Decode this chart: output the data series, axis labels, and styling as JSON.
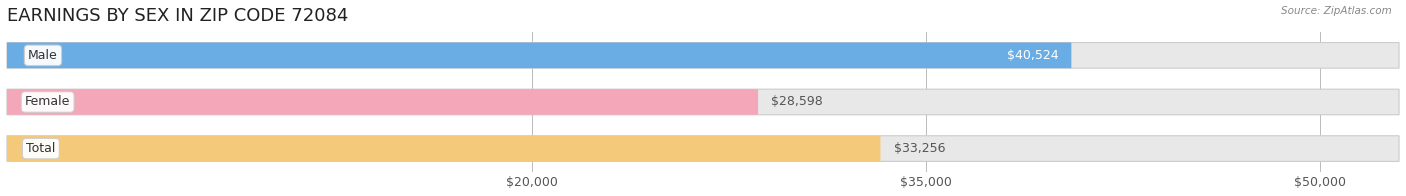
{
  "title": "EARNINGS BY SEX IN ZIP CODE 72084",
  "source": "Source: ZipAtlas.com",
  "categories": [
    "Male",
    "Female",
    "Total"
  ],
  "values": [
    40524,
    28598,
    33256
  ],
  "bar_colors": [
    "#6aade4",
    "#f4a7b9",
    "#f5c97a"
  ],
  "bar_bg_color": "#e8e8e8",
  "label_colors": [
    "#6aade4",
    "#f4a7b9",
    "#f5c97a"
  ],
  "value_labels": [
    "$40,524",
    "$28,598",
    "$33,256"
  ],
  "xmin": 0,
  "xmax": 53000,
  "xticks": [
    20000,
    35000,
    50000
  ],
  "xtick_labels": [
    "$20,000",
    "$35,000",
    "$50,000"
  ],
  "title_fontsize": 13,
  "tick_fontsize": 9,
  "bar_height": 0.55,
  "background_color": "#ffffff",
  "value_label_color": "#555555",
  "male_value_label_color": "#ffffff"
}
